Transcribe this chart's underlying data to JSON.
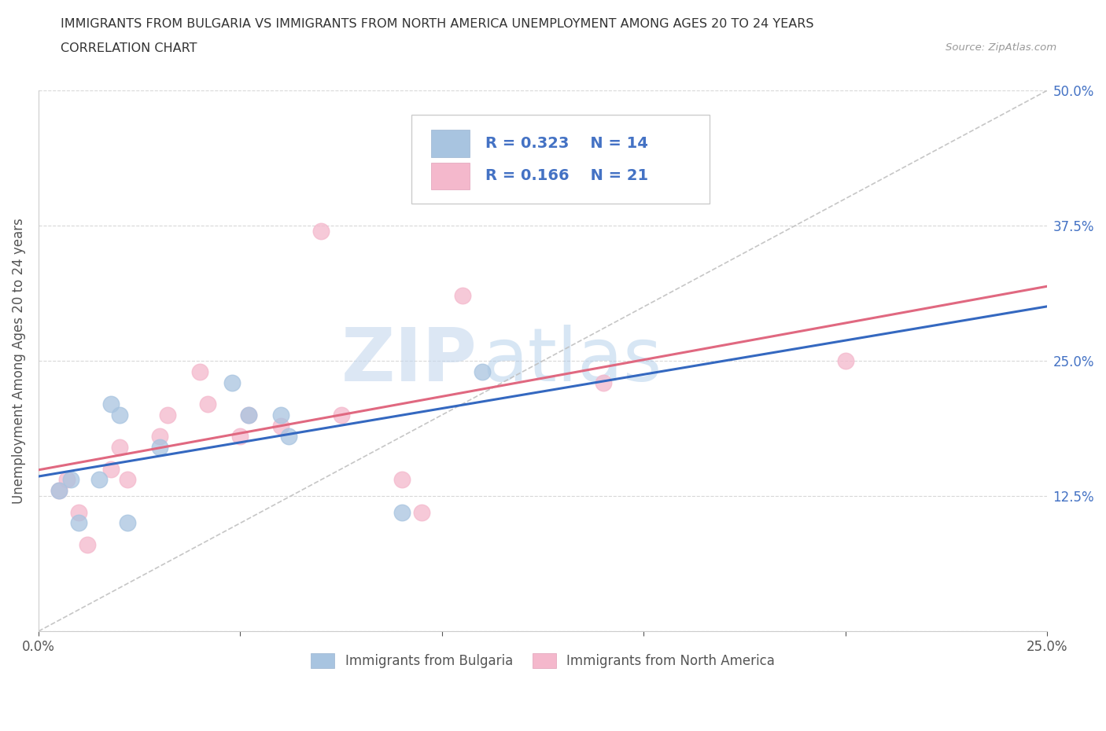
{
  "title_line1": "IMMIGRANTS FROM BULGARIA VS IMMIGRANTS FROM NORTH AMERICA UNEMPLOYMENT AMONG AGES 20 TO 24 YEARS",
  "title_line2": "CORRELATION CHART",
  "source": "Source: ZipAtlas.com",
  "ylabel": "Unemployment Among Ages 20 to 24 years",
  "xlim": [
    0.0,
    0.25
  ],
  "ylim": [
    0.0,
    0.5
  ],
  "xticks": [
    0.0,
    0.05,
    0.1,
    0.15,
    0.2,
    0.25
  ],
  "xticklabels": [
    "0.0%",
    "",
    "",
    "",
    "",
    "25.0%"
  ],
  "yticks": [
    0.0,
    0.125,
    0.25,
    0.375,
    0.5
  ],
  "yticklabels_right": [
    "",
    "12.5%",
    "25.0%",
    "37.5%",
    "50.0%"
  ],
  "legend_entries": [
    "Immigrants from Bulgaria",
    "Immigrants from North America"
  ],
  "r_bulgaria": 0.323,
  "n_bulgaria": 14,
  "r_north_america": 0.166,
  "n_north_america": 21,
  "bulgaria_color": "#a8c4e0",
  "north_america_color": "#f4b8cc",
  "bulgaria_line_color": "#3468c0",
  "north_america_line_color": "#e06880",
  "ref_line_color": "#c0c0c0",
  "bulgaria_x": [
    0.005,
    0.008,
    0.01,
    0.015,
    0.018,
    0.02,
    0.022,
    0.03,
    0.048,
    0.052,
    0.06,
    0.062,
    0.09,
    0.11
  ],
  "bulgaria_y": [
    0.13,
    0.14,
    0.1,
    0.14,
    0.21,
    0.2,
    0.1,
    0.17,
    0.23,
    0.2,
    0.2,
    0.18,
    0.11,
    0.24
  ],
  "north_america_x": [
    0.005,
    0.007,
    0.01,
    0.012,
    0.018,
    0.02,
    0.022,
    0.03,
    0.032,
    0.04,
    0.042,
    0.05,
    0.052,
    0.06,
    0.07,
    0.075,
    0.09,
    0.095,
    0.105,
    0.14,
    0.2
  ],
  "north_america_y": [
    0.13,
    0.14,
    0.11,
    0.08,
    0.15,
    0.17,
    0.14,
    0.18,
    0.2,
    0.24,
    0.21,
    0.18,
    0.2,
    0.19,
    0.37,
    0.2,
    0.14,
    0.11,
    0.31,
    0.23,
    0.25
  ],
  "watermark_zip": "ZIP",
  "watermark_atlas": "atlas",
  "background_color": "#ffffff",
  "grid_color": "#d8d8d8",
  "tick_label_color": "#4472c4",
  "spine_color": "#cccccc"
}
